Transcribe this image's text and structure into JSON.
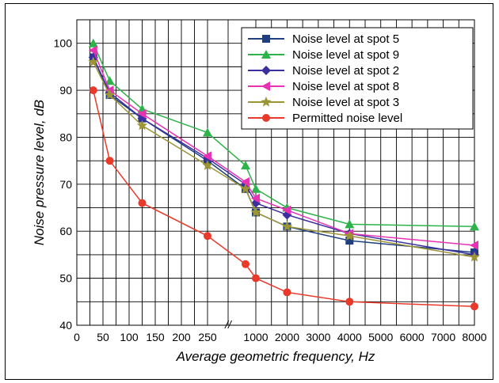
{
  "chart_data": {
    "type": "line",
    "xlabel": "Average geometric frequency, Hz",
    "ylabel": "Noise pressure level, dB",
    "ylim": [
      40,
      105
    ],
    "y_ticks": [
      40,
      50,
      60,
      70,
      80,
      90,
      100
    ],
    "x_ticks_left": [
      "0",
      "50",
      "100",
      "150",
      "200",
      "250"
    ],
    "x_ticks_right": [
      "1000",
      "2000",
      "3000",
      "4000",
      "5000",
      "6000",
      "7000",
      "8000"
    ],
    "axis_break_marker": "//",
    "grid": true,
    "legend_position": "top-right",
    "x": [
      31.5,
      63,
      125,
      250,
      500,
      1000,
      2000,
      4000,
      8000
    ],
    "series": [
      {
        "name": "Noise level at spot  5",
        "color": "#1f3f7f",
        "marker": "square",
        "values": [
          97,
          89,
          84,
          75,
          69,
          64,
          61,
          58,
          55.5
        ]
      },
      {
        "name": "Noise level at spot  9",
        "color": "#2db34a",
        "marker": "triangle-up",
        "values": [
          100,
          92,
          86,
          81,
          74,
          69,
          65,
          61.5,
          61
        ]
      },
      {
        "name": "Noise level at spot  2",
        "color": "#3a2fa0",
        "marker": "diamond",
        "values": [
          97,
          89.5,
          84,
          75.5,
          70,
          66,
          63.5,
          59.5,
          55
        ]
      },
      {
        "name": "Noise level at spot  8",
        "color": "#e832b4",
        "marker": "triangle-left",
        "values": [
          98.5,
          90,
          85,
          76,
          70.5,
          67,
          64.5,
          59.5,
          57
        ]
      },
      {
        "name": "Noise level at spot  3",
        "color": "#9c9536",
        "marker": "star",
        "values": [
          96,
          89,
          82.5,
          74,
          69,
          64,
          61,
          59,
          54.5
        ]
      },
      {
        "name": "Permitted noise level",
        "color": "#e8392b",
        "marker": "circle",
        "values": [
          90,
          75,
          66,
          59,
          53,
          50,
          47,
          45,
          44
        ]
      }
    ]
  }
}
